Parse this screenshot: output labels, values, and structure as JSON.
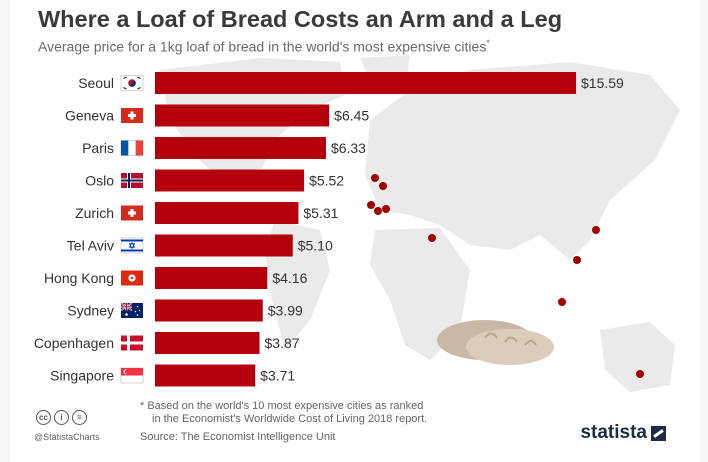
{
  "header": {
    "title": "Where a Loaf of Bread Costs an Arm and a Leg",
    "subtitle": "Average price for a 1kg loaf of bread in the world's most expensive cities",
    "subtitle_mark": "*"
  },
  "chart_data": {
    "type": "bar",
    "orientation": "horizontal",
    "title": "Where a Loaf of Bread Costs an Arm and a Leg",
    "subtitle": "Average price for a 1kg loaf of bread in the world's most expensive cities*",
    "xlabel": "",
    "ylabel": "",
    "categories": [
      "Seoul",
      "Geneva",
      "Paris",
      "Oslo",
      "Zurich",
      "Tel Aviv",
      "Hong Kong",
      "Sydney",
      "Copenhagen",
      "Singapore"
    ],
    "values": [
      15.59,
      6.45,
      6.33,
      5.52,
      5.31,
      5.1,
      4.16,
      3.99,
      3.87,
      3.71
    ],
    "value_labels": [
      "$15.59",
      "$6.45",
      "$6.33",
      "$5.52",
      "$5.31",
      "$5.10",
      "$4.16",
      "$3.99",
      "$3.87",
      "$3.71"
    ],
    "xlim": [
      0,
      15.59
    ],
    "grid": false,
    "bar_color": "#b3000c",
    "flags": [
      "flag-south-korea-icon",
      "flag-switzerland-icon",
      "flag-france-icon",
      "flag-norway-icon",
      "flag-switzerland-icon",
      "flag-israel-icon",
      "flag-hong-kong-icon",
      "flag-australia-icon",
      "flag-denmark-icon",
      "flag-singapore-icon"
    ]
  },
  "footer": {
    "footnote_line1": "* Based on the world's 10 most expensive cities as ranked",
    "footnote_line2": "in the Economist's Worldwide Cost of Living 2018 report.",
    "source": "Source: The Economist Intelligence Unit",
    "handle": "@StatistaCharts",
    "license_icons": [
      "cc",
      "i",
      "="
    ],
    "brand": "statista"
  },
  "colors": {
    "bar": "#b3000c",
    "map": "#eaeaea",
    "dot": "#a00000",
    "title": "#3a3a3a",
    "brand": "#1c2b4a"
  }
}
